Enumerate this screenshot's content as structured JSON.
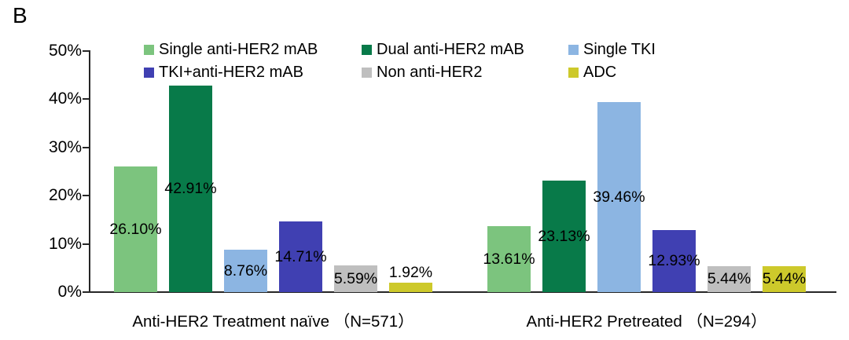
{
  "panel_label": "B",
  "chart_data": {
    "type": "bar",
    "title": "",
    "xlabel": "",
    "ylabel": "",
    "ylim": [
      0,
      50
    ],
    "yticks": [
      "0%",
      "10%",
      "20%",
      "30%",
      "40%",
      "50%"
    ],
    "grid": false,
    "legend_position": "top",
    "categories": [
      "Anti-HER2 Treatment naïve （N=571）",
      "Anti-HER2 Pretreated （N=294）"
    ],
    "series": [
      {
        "name": "Single anti-HER2 mAB",
        "color": "#7CC47E",
        "values": [
          26.1,
          13.61
        ],
        "labels": [
          "26.10%",
          "13.61%"
        ]
      },
      {
        "name": "Dual anti-HER2 mAB",
        "color": "#087A49",
        "values": [
          42.91,
          23.13
        ],
        "labels": [
          "42.91%",
          "23.13%"
        ]
      },
      {
        "name": "Single TKI",
        "color": "#8CB5E2",
        "values": [
          8.76,
          39.46
        ],
        "labels": [
          "8.76%",
          "39.46%"
        ]
      },
      {
        "name": "TKI+anti-HER2 mAB",
        "color": "#4040B2",
        "values": [
          14.71,
          12.93
        ],
        "labels": [
          "14.71%",
          "12.93%"
        ]
      },
      {
        "name": "Non anti-HER2",
        "color": "#BFBFBF",
        "values": [
          5.59,
          5.44
        ],
        "labels": [
          "5.59%",
          "5.44%"
        ]
      },
      {
        "name": "ADC",
        "color": "#CDC92B",
        "values": [
          1.92,
          5.44
        ],
        "labels": [
          "1.92%",
          "5.44%"
        ]
      }
    ],
    "axis_color": "#262626",
    "text_color": "#000000"
  }
}
